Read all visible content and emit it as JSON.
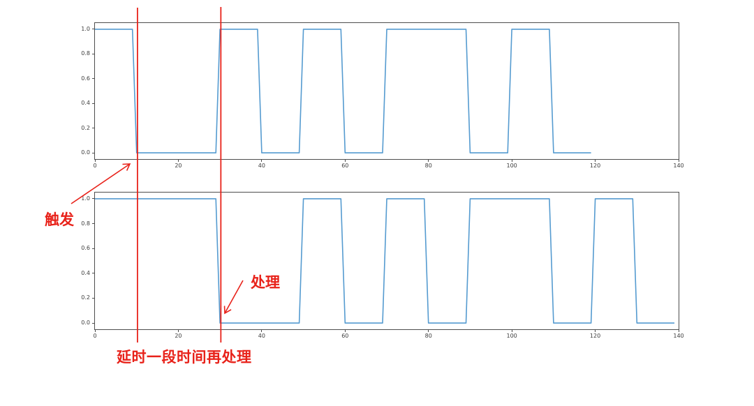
{
  "figure": {
    "background": "#ffffff",
    "spine_color": "#4d4d4d",
    "tick_color": "#3c3c3c"
  },
  "annotations": {
    "trigger_label": "触发",
    "process_label": "处理",
    "delay_label": "延时一段时间再处理",
    "accent_color": "#e8221a",
    "guide_x": [
      10,
      30
    ]
  },
  "chart_data": [
    {
      "type": "line",
      "name": "original-trigger-signal",
      "title": "",
      "xlabel": "",
      "ylabel": "",
      "grid": false,
      "legend": null,
      "xlim": [
        0,
        140
      ],
      "ylim": [
        -0.05,
        1.05
      ],
      "x_ticks": [
        "0",
        "20",
        "40",
        "60",
        "80",
        "100",
        "120",
        "140"
      ],
      "y_ticks": [
        "0.0",
        "0.2",
        "0.4",
        "0.6",
        "0.8",
        "1.0"
      ],
      "line_color": "#559bd0",
      "series": [
        {
          "name": "signal",
          "segments": [
            {
              "level": 1,
              "from": 0,
              "to": 9
            },
            {
              "level": 0,
              "from": 10,
              "to": 29
            },
            {
              "level": 1,
              "from": 30,
              "to": 39
            },
            {
              "level": 0,
              "from": 40,
              "to": 49
            },
            {
              "level": 1,
              "from": 50,
              "to": 59
            },
            {
              "level": 0,
              "from": 60,
              "to": 69
            },
            {
              "level": 1,
              "from": 70,
              "to": 89
            },
            {
              "level": 0,
              "from": 90,
              "to": 99
            },
            {
              "level": 1,
              "from": 100,
              "to": 109
            },
            {
              "level": 0,
              "from": 110,
              "to": 119
            }
          ]
        }
      ]
    },
    {
      "type": "line",
      "name": "delayed-processed-signal",
      "title": "",
      "xlabel": "",
      "ylabel": "",
      "grid": false,
      "legend": null,
      "xlim": [
        0,
        140
      ],
      "ylim": [
        -0.05,
        1.05
      ],
      "x_ticks": [
        "0",
        "20",
        "40",
        "60",
        "80",
        "100",
        "120",
        "140"
      ],
      "y_ticks": [
        "0.0",
        "0.2",
        "0.4",
        "0.6",
        "0.8",
        "1.0"
      ],
      "line_color": "#559bd0",
      "series": [
        {
          "name": "signal-delayed-by-20",
          "segments": [
            {
              "level": 1,
              "from": 0,
              "to": 29
            },
            {
              "level": 0,
              "from": 30,
              "to": 49
            },
            {
              "level": 1,
              "from": 50,
              "to": 59
            },
            {
              "level": 0,
              "from": 60,
              "to": 69
            },
            {
              "level": 1,
              "from": 70,
              "to": 79
            },
            {
              "level": 0,
              "from": 80,
              "to": 89
            },
            {
              "level": 1,
              "from": 90,
              "to": 109
            },
            {
              "level": 0,
              "from": 110,
              "to": 119
            },
            {
              "level": 1,
              "from": 120,
              "to": 129
            },
            {
              "level": 0,
              "from": 130,
              "to": 139
            }
          ]
        }
      ]
    }
  ]
}
